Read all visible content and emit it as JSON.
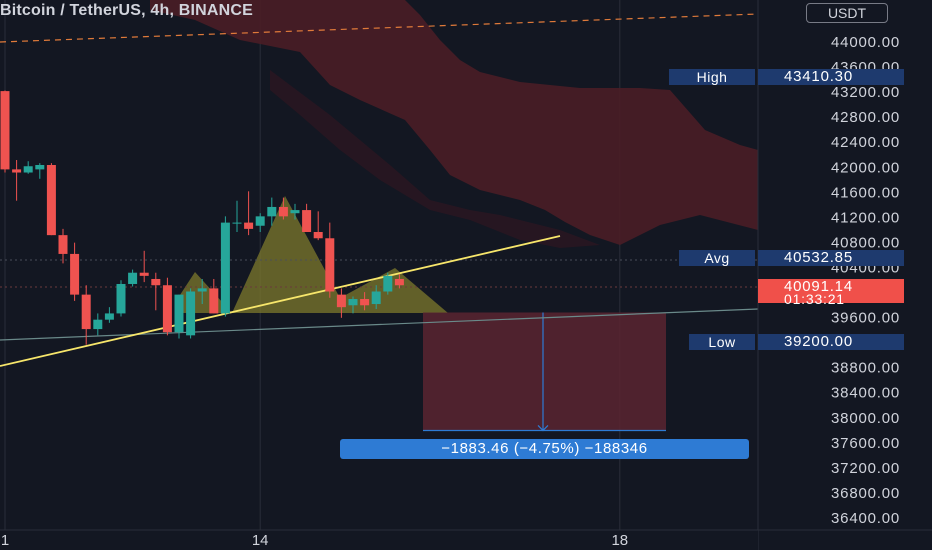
{
  "header": {
    "title": "Bitcoin / TetherUS, 4h, BINANCE",
    "currency_button": "USDT"
  },
  "markers": {
    "high": {
      "label": "High",
      "value": "43410.30"
    },
    "avg": {
      "label": "Avg",
      "value": "40532.85"
    },
    "low": {
      "label": "Low",
      "value": "39200.00"
    }
  },
  "last_price": {
    "value": "40091.14",
    "countdown": "01:33:21"
  },
  "measure_label": "−1883.46 (−4.75%) −188346",
  "colors": {
    "background": "#131722",
    "up": "#26a69a",
    "down": "#ef5350",
    "cloud": "#4a1d26",
    "trendline": "#f7e66b",
    "pattern": "#7d7a2c",
    "measure_box": "#5b2430",
    "measure_line": "#2e7bd4",
    "marker_bg": "#1e3a6e"
  },
  "chart_data": {
    "type": "candlestick",
    "symbol": "Bitcoin / TetherUS",
    "interval": "4h",
    "exchange": "BINANCE",
    "y_axis_ticks": [
      36400,
      36800,
      37200,
      37600,
      38000,
      38400,
      38800,
      39200,
      39600,
      40000,
      40400,
      40800,
      41200,
      41600,
      42000,
      42400,
      42800,
      43200,
      43600,
      44000
    ],
    "x_axis_ticks": [
      {
        "label": "1",
        "bar": 0
      },
      {
        "label": "14",
        "bar": 22
      },
      {
        "label": "18",
        "bar": 53
      }
    ],
    "ylim": [
      36200,
      44400
    ],
    "bars_total": 64,
    "candles": [
      {
        "o": 43200,
        "h": 43210,
        "l": 41900,
        "c": 41950
      },
      {
        "o": 41950,
        "h": 42100,
        "l": 41450,
        "c": 41900
      },
      {
        "o": 41900,
        "h": 42080,
        "l": 41880,
        "c": 42000
      },
      {
        "o": 41950,
        "h": 42050,
        "l": 41800,
        "c": 42020
      },
      {
        "o": 42020,
        "h": 42050,
        "l": 40900,
        "c": 40900
      },
      {
        "o": 40900,
        "h": 41000,
        "l": 40450,
        "c": 40600
      },
      {
        "o": 40600,
        "h": 40780,
        "l": 39850,
        "c": 39950
      },
      {
        "o": 39950,
        "h": 40100,
        "l": 39150,
        "c": 39400
      },
      {
        "o": 39400,
        "h": 39650,
        "l": 39300,
        "c": 39550
      },
      {
        "o": 39550,
        "h": 39750,
        "l": 39500,
        "c": 39650
      },
      {
        "o": 39650,
        "h": 40180,
        "l": 39600,
        "c": 40120
      },
      {
        "o": 40120,
        "h": 40350,
        "l": 40080,
        "c": 40300
      },
      {
        "o": 40300,
        "h": 40650,
        "l": 40150,
        "c": 40250
      },
      {
        "o": 40200,
        "h": 40300,
        "l": 39700,
        "c": 40100
      },
      {
        "o": 40100,
        "h": 40220,
        "l": 39300,
        "c": 39350
      },
      {
        "o": 39350,
        "h": 39950,
        "l": 39250,
        "c": 39950
      },
      {
        "o": 39300,
        "h": 40050,
        "l": 39250,
        "c": 40000
      },
      {
        "o": 40000,
        "h": 40200,
        "l": 39800,
        "c": 40050
      },
      {
        "o": 40050,
        "h": 40200,
        "l": 39650,
        "c": 39650
      },
      {
        "o": 39650,
        "h": 41200,
        "l": 39600,
        "c": 41100
      },
      {
        "o": 41100,
        "h": 41450,
        "l": 40950,
        "c": 41100
      },
      {
        "o": 41100,
        "h": 41600,
        "l": 40900,
        "c": 41000
      },
      {
        "o": 41050,
        "h": 41250,
        "l": 40950,
        "c": 41200
      },
      {
        "o": 41200,
        "h": 41500,
        "l": 41050,
        "c": 41350
      },
      {
        "o": 41350,
        "h": 41500,
        "l": 41150,
        "c": 41200
      },
      {
        "o": 41250,
        "h": 41400,
        "l": 41150,
        "c": 41300
      },
      {
        "o": 41300,
        "h": 41400,
        "l": 40950,
        "c": 40950
      },
      {
        "o": 40950,
        "h": 41280,
        "l": 40820,
        "c": 40850
      },
      {
        "o": 40850,
        "h": 41100,
        "l": 39900,
        "c": 40000
      },
      {
        "o": 39950,
        "h": 40050,
        "l": 39580,
        "c": 39750
      },
      {
        "o": 39780,
        "h": 39920,
        "l": 39650,
        "c": 39880
      },
      {
        "o": 39880,
        "h": 39990,
        "l": 39700,
        "c": 39780
      },
      {
        "o": 39800,
        "h": 40100,
        "l": 39720,
        "c": 40000
      },
      {
        "o": 40000,
        "h": 40300,
        "l": 39950,
        "c": 40250
      },
      {
        "o": 40200,
        "h": 40280,
        "l": 40050,
        "c": 40100
      }
    ],
    "high_marker": 43410.3,
    "avg_marker": 40532.85,
    "low_marker": 39200.0,
    "last_price": 40091.14,
    "measure": {
      "from": 39665,
      "to": 37781,
      "change": -1883.46,
      "percent": -4.75
    }
  }
}
